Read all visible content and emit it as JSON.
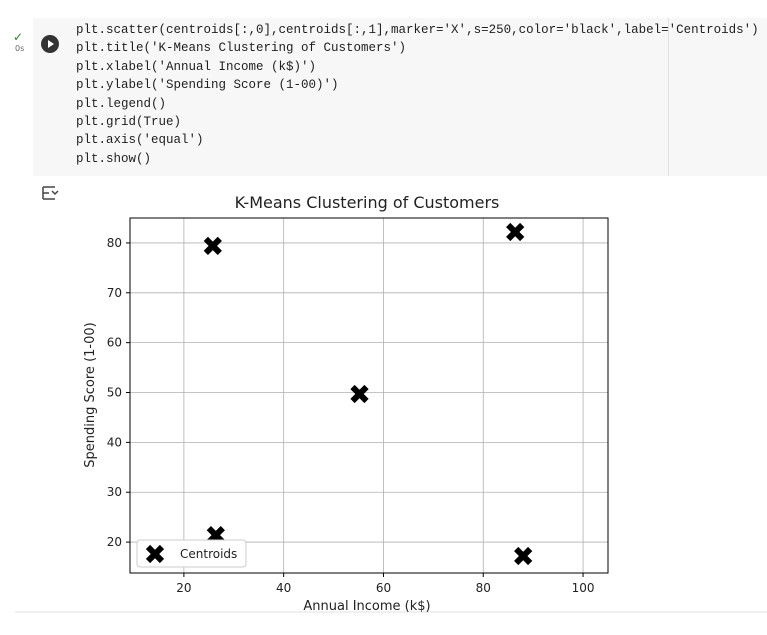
{
  "cell": {
    "exec_time": "0s",
    "code_lines": [
      "plt.scatter(centroids[:,0],centroids[:,1],marker='X',s=250,color='black',label='Centroids')",
      "plt.title('K-Means Clustering of Customers')",
      "plt.xlabel('Annual Income (k$)')",
      "plt.ylabel('Spending Score (1-00)')",
      "plt.legend()",
      "plt.grid(True)",
      "plt.axis('equal')",
      "plt.show()"
    ]
  },
  "chart_data": {
    "type": "scatter",
    "title": "K-Means Clustering of Customers",
    "x_label": "Annual Income (k$)",
    "y_label": "Spending Score (1-00)",
    "series": [
      {
        "name": "Centroids",
        "color": "black",
        "x": [
          25.8,
          86.4,
          55.2,
          26.4,
          88.0
        ],
        "values": [
          79.4,
          82.2,
          49.7,
          21.4,
          17.2
        ]
      }
    ],
    "xlim": [
      9.2,
      105
    ],
    "ylim": [
      13.8,
      85
    ],
    "xticks": [
      20,
      40,
      60,
      80,
      100
    ],
    "yticks": [
      20,
      30,
      40,
      50,
      60,
      70,
      80
    ],
    "grid": true,
    "legend": "lower left"
  }
}
